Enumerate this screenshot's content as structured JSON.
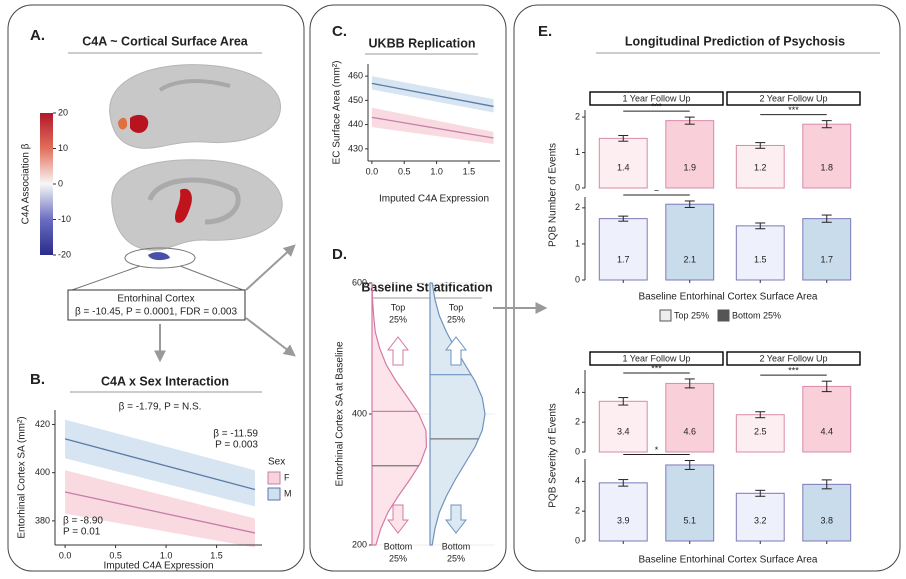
{
  "panel_a": {
    "panel_label": "A.",
    "title": "C4A ~ Cortical Surface Area",
    "colorbar": {
      "title": "C4A Association β",
      "ticks": [
        20,
        10,
        0,
        -10,
        -20
      ],
      "lim": [
        -20,
        20
      ]
    },
    "callout": {
      "title": "Entorhinal Cortex",
      "stats": "β = -10.45, P = 0.0001, FDR = 0.003"
    }
  },
  "chart_data": [
    {
      "type": "line",
      "panel_label": "B.",
      "title": "C4A x Sex Interaction",
      "subtitle": "β = -1.79, P = N.S.",
      "x_label": "Imputed C4A Expression",
      "y_label": "Entorhinal Cortex SA (mm²)",
      "x": [
        0,
        1.88
      ],
      "xlim": [
        -0.1,
        1.95
      ],
      "xticks": [
        {
          "value": 0,
          "label": "0.0"
        },
        {
          "value": 0.5,
          "label": "0.5"
        },
        {
          "value": 1,
          "label": "1.0"
        },
        {
          "value": 1.5,
          "label": "1.5"
        }
      ],
      "ylim": [
        370,
        426
      ],
      "yticks": [
        380,
        400,
        420
      ],
      "legend_title": "Sex",
      "series": [
        {
          "name": "F",
          "color": "#c47fab",
          "fill": "#f9d3dc",
          "values": [
            392,
            375
          ],
          "lower": [
            383,
            369
          ],
          "upper": [
            401,
            381
          ],
          "annotations": [
            "β = -8.90",
            "P = 0.01"
          ]
        },
        {
          "name": "M",
          "color": "#5b7aa6",
          "fill": "#cfe0ee",
          "values": [
            414,
            393
          ],
          "lower": [
            406,
            386
          ],
          "upper": [
            422,
            401
          ],
          "annotations": [
            "β = -11.59",
            "P = 0.003"
          ]
        }
      ]
    },
    {
      "type": "line",
      "panel_label": "C.",
      "title": "UKBB Replication",
      "x_label": "Imputed C4A Expression",
      "y_label": "EC Surface Area (mm²)",
      "x": [
        0,
        1.88
      ],
      "xlim": [
        -0.06,
        1.98
      ],
      "xticks": [
        {
          "value": 0,
          "label": "0.0"
        },
        {
          "value": 0.5,
          "label": "0.5"
        },
        {
          "value": 1,
          "label": "1.0"
        },
        {
          "value": 1.5,
          "label": "1.5"
        }
      ],
      "ylim": [
        425,
        465
      ],
      "yticks": [
        430,
        440,
        450,
        460
      ],
      "series": [
        {
          "color": "#5b7aa6",
          "fill": "#cfe0ee",
          "values": [
            457,
            447.5
          ],
          "lower": [
            454.5,
            445
          ],
          "upper": [
            460,
            450.5
          ]
        },
        {
          "color": "#c47fab",
          "fill": "#f9d3dc",
          "values": [
            443,
            434.5
          ],
          "lower": [
            439,
            432
          ],
          "upper": [
            447,
            437
          ]
        }
      ]
    },
    {
      "type": "density",
      "panel_label": "D.",
      "title": "Baseline Stratification",
      "y_label": "Entorhinal Cortex SA at Baseline",
      "y": [
        200,
        225,
        250,
        275,
        300,
        325,
        350,
        375,
        400,
        425,
        450,
        475,
        500,
        525,
        550,
        575,
        600
      ],
      "ylim": [
        200,
        600
      ],
      "yticks": [
        200,
        400,
        600
      ],
      "top_label": [
        "Top",
        "25%"
      ],
      "bottom_label": [
        "Bottom",
        "25%"
      ],
      "series": [
        {
          "color": "#d47aa5",
          "fill": "#fde4ea",
          "values": [
            0.07,
            0.16,
            0.29,
            0.48,
            0.69,
            0.88,
            0.99,
            0.98,
            0.85,
            0.65,
            0.44,
            0.26,
            0.14,
            0.06,
            0.03,
            0.01,
            0
          ],
          "quantiles": [
            321,
            404
          ]
        },
        {
          "color": "#6f93bf",
          "fill": "#dce9f3",
          "values": [
            0.04,
            0.09,
            0.17,
            0.3,
            0.46,
            0.64,
            0.82,
            0.95,
            1,
            0.95,
            0.82,
            0.64,
            0.46,
            0.3,
            0.17,
            0.09,
            0.04
          ],
          "quantiles": [
            362,
            460
          ]
        }
      ]
    },
    {
      "type": "faceted_bar",
      "panel_label": "E.",
      "title": "Longitudinal Prediction of Psychosis",
      "y_label": "PQB Number of Events",
      "x_label": "Baseline Entorhinal Cortex Surface Area",
      "facets": [
        "1 Year Follow Up",
        "2 Year Follow Up"
      ],
      "legend": [
        {
          "name": "Top 25%",
          "color": "#eeeeee"
        },
        {
          "name": "Bottom 25%",
          "color": "#555555"
        }
      ],
      "rows": [
        {
          "color": "#d98aa8",
          "fills": [
            "#fdeef1",
            "#f9d0da"
          ],
          "ylim": [
            0,
            2.2
          ],
          "yticks": [
            0,
            1,
            2
          ],
          "cells": [
            {
              "values": [
                1.4,
                1.9
              ],
              "errors": [
                0.08,
                0.1
              ],
              "significance": "***"
            },
            {
              "values": [
                1.2,
                1.8
              ],
              "errors": [
                0.08,
                0.1
              ],
              "significance": "***"
            }
          ]
        },
        {
          "color": "#7d78b8",
          "fills": [
            "#eef1fb",
            "#c9dcec"
          ],
          "ylim": [
            0,
            2.3
          ],
          "yticks": [
            0,
            1,
            2
          ],
          "cells": [
            {
              "values": [
                1.7,
                2.1
              ],
              "errors": [
                0.07,
                0.09
              ],
              "significance": "~"
            },
            {
              "values": [
                1.5,
                1.7
              ],
              "errors": [
                0.08,
                0.1
              ]
            }
          ]
        }
      ]
    },
    {
      "type": "faceted_bar",
      "y_label": "PQB Severity of Events",
      "x_label": "Baseline Entorhinal Cortex Surface Area",
      "facets": [
        "1 Year Follow Up",
        "2 Year Follow Up"
      ],
      "rows": [
        {
          "color": "#d98aa8",
          "fills": [
            "#fdeef1",
            "#f9d0da"
          ],
          "ylim": [
            0,
            5.5
          ],
          "yticks": [
            0,
            2,
            4
          ],
          "cells": [
            {
              "values": [
                3.4,
                4.6
              ],
              "errors": [
                0.25,
                0.3
              ],
              "significance": "***"
            },
            {
              "values": [
                2.5,
                4.4
              ],
              "errors": [
                0.2,
                0.35
              ],
              "significance": "***"
            }
          ]
        },
        {
          "color": "#7d78b8",
          "fills": [
            "#eef1fb",
            "#c9dcec"
          ],
          "ylim": [
            0,
            5.5
          ],
          "yticks": [
            0,
            2,
            4
          ],
          "cells": [
            {
              "values": [
                3.9,
                5.1
              ],
              "errors": [
                0.22,
                0.3
              ],
              "significance": "*"
            },
            {
              "values": [
                3.2,
                3.8
              ],
              "errors": [
                0.2,
                0.3
              ]
            }
          ]
        }
      ]
    }
  ]
}
